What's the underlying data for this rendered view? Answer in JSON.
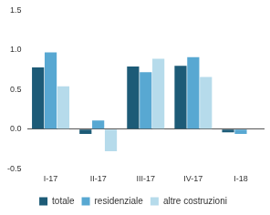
{
  "chart_data": {
    "type": "bar",
    "categories": [
      "I-17",
      "II-17",
      "III-17",
      "IV-17",
      "I-18"
    ],
    "series": [
      {
        "name": "totale",
        "color": "#1d5b77",
        "values": [
          0.78,
          -0.06,
          0.79,
          0.8,
          -0.04
        ]
      },
      {
        "name": "residenziale",
        "color": "#58a8d2",
        "values": [
          0.97,
          0.11,
          0.72,
          0.91,
          -0.06
        ]
      },
      {
        "name": "altre costruzioni",
        "color": "#b6dbeb",
        "values": [
          0.54,
          -0.28,
          0.89,
          0.66,
          null
        ]
      }
    ],
    "ylim": [
      -0.5,
      1.5
    ],
    "yticks": [
      -0.5,
      {
        "value": 0,
        "label": "0.0"
      },
      {
        "value": 0.5,
        "label": "0.5"
      },
      {
        "value": 1,
        "label": "1.0"
      },
      1.5
    ],
    "grid": false,
    "legend": "bottom"
  }
}
